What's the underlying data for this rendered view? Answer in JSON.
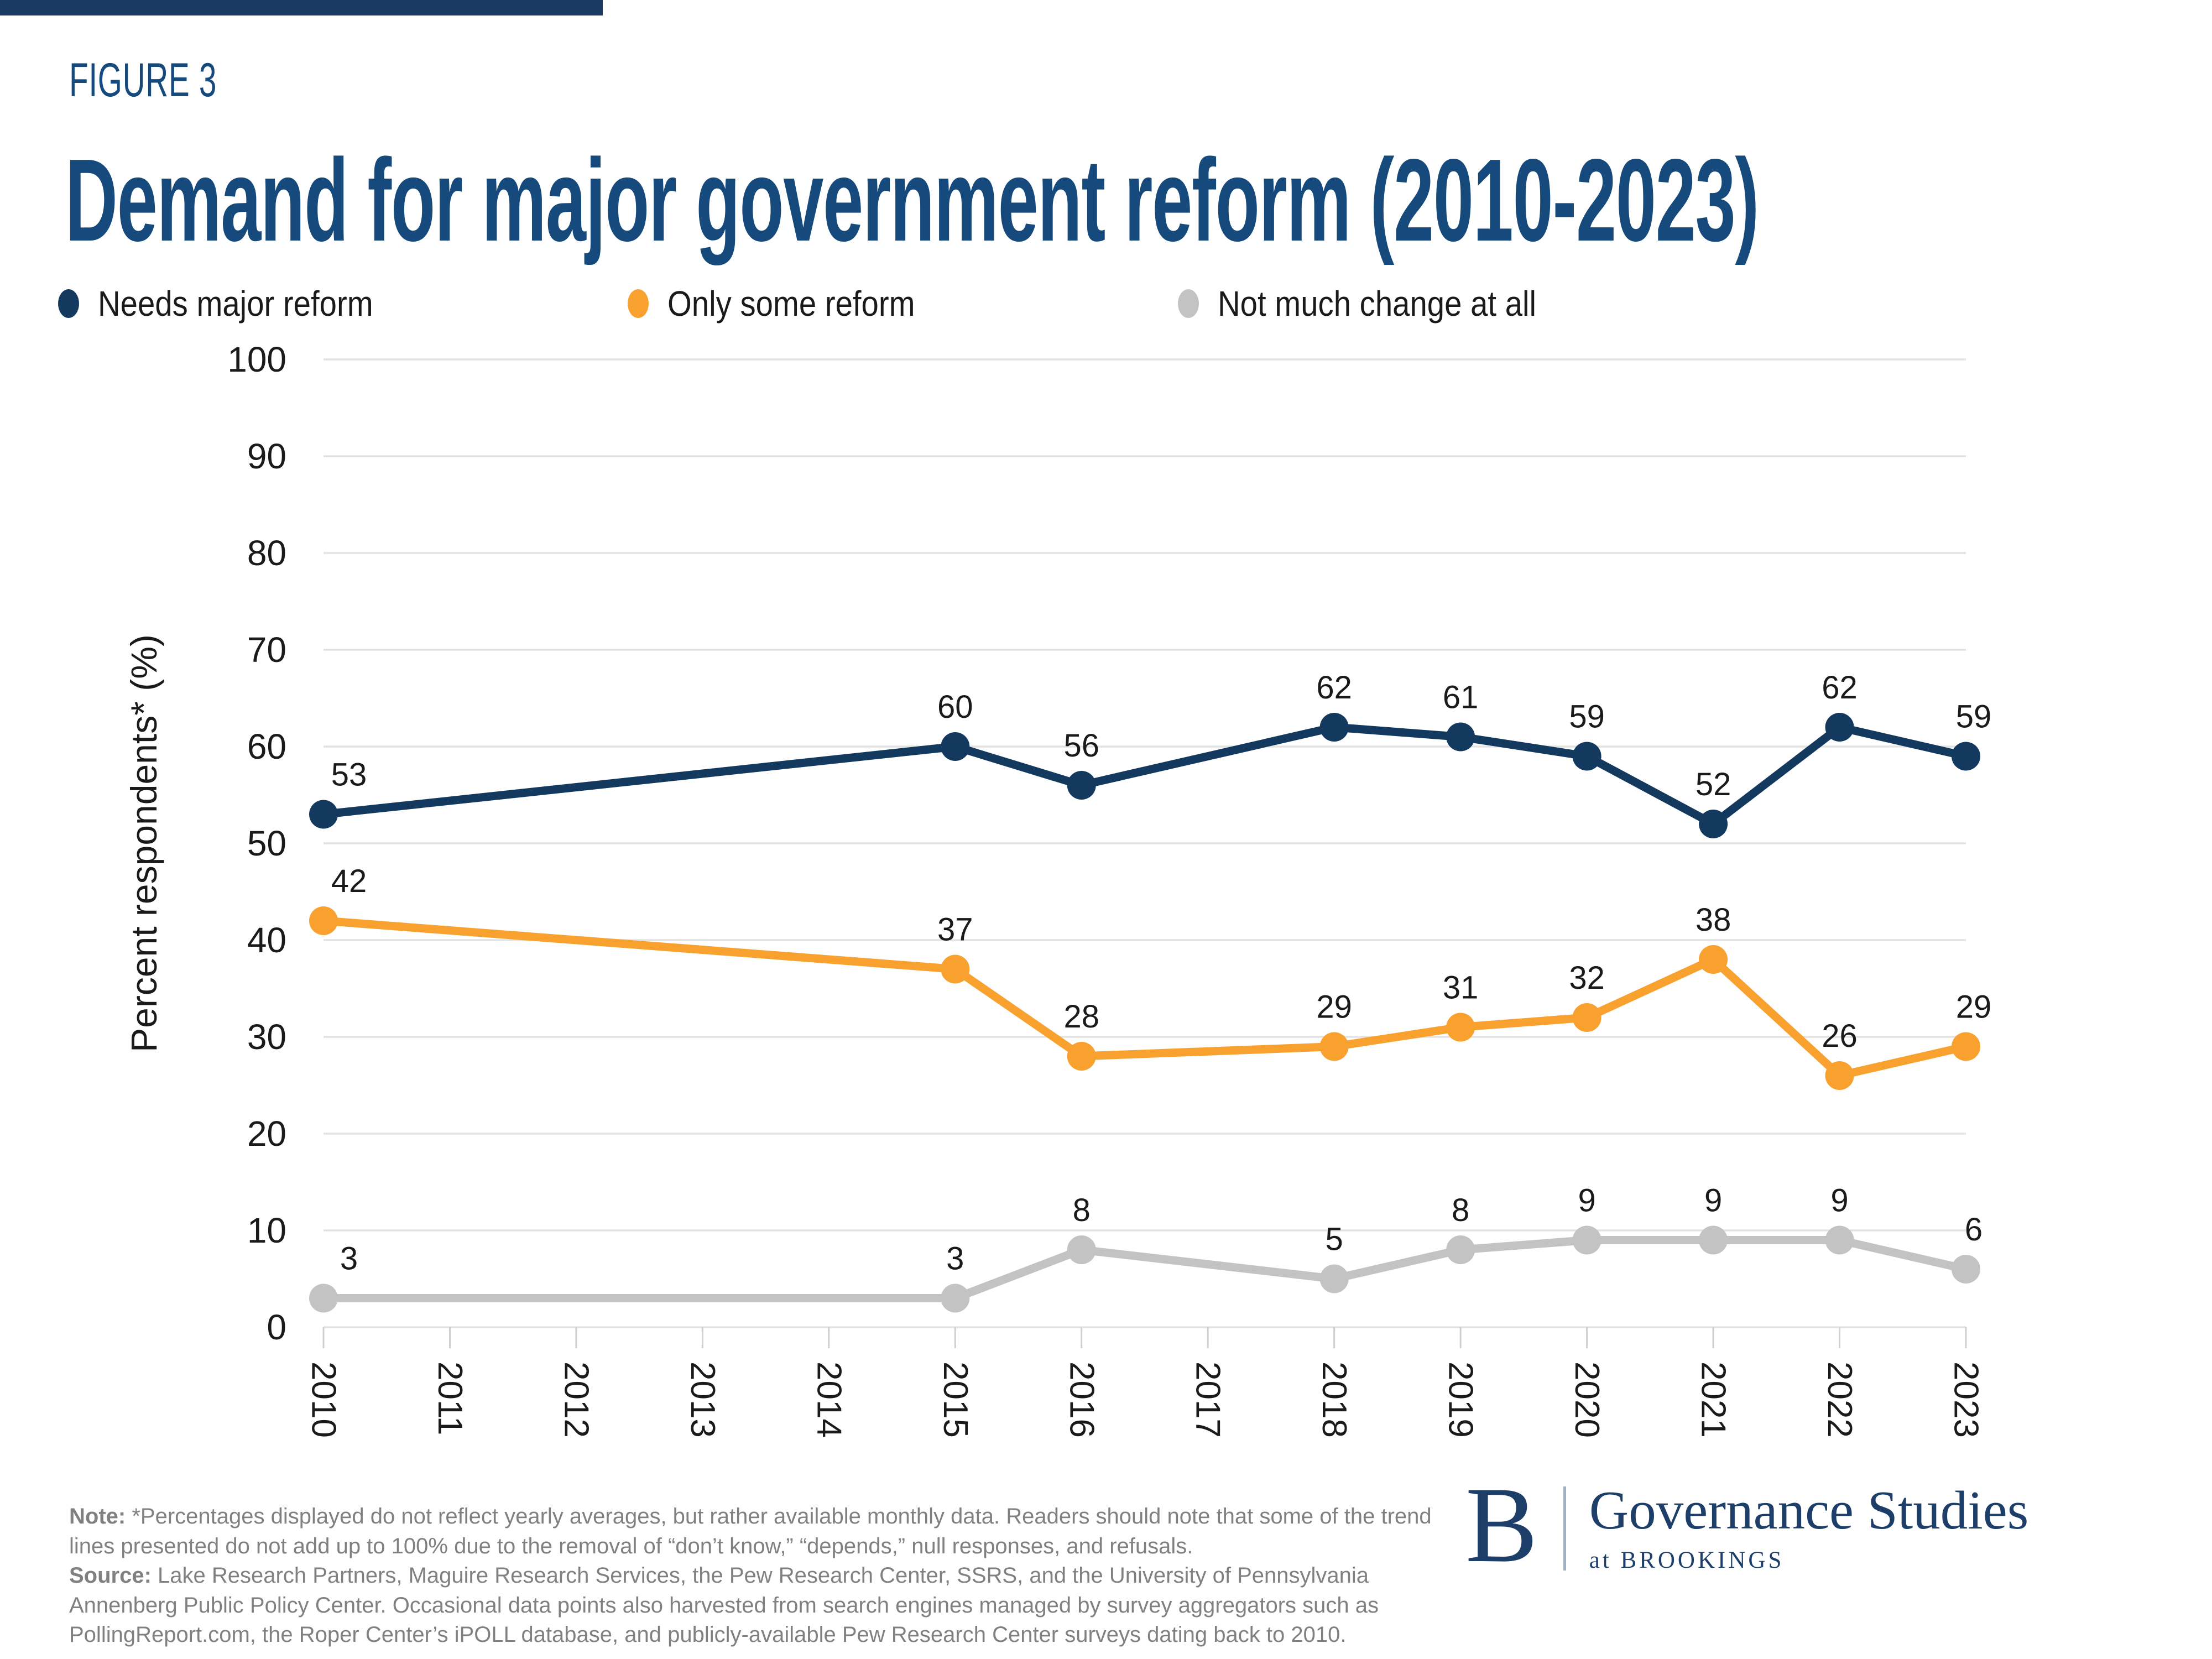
{
  "page": {
    "figure_label": "FIGURE 3"
  },
  "title": "Demand for major government reform (2010-2023)",
  "colors": {
    "top_bar": "#1A3A64",
    "title_navy": "#164A7C",
    "logo_navy": "#1C3E69",
    "note_gray": "#808080",
    "grid": "#E3E3E3",
    "tick": "#CFCFCF",
    "axis_text": "#1A1A1A",
    "navy_series": "#14395F",
    "orange_series": "#F9A12E",
    "gray_series": "#C3C3C3"
  },
  "chart_data": {
    "type": "line",
    "title": "Demand for major government reform (2010-2023)",
    "xlabel": "",
    "ylabel": "Percent respondents* (%)",
    "ylim": [
      0,
      100
    ],
    "yticks": [
      0,
      10,
      20,
      30,
      40,
      50,
      60,
      70,
      80,
      90,
      100
    ],
    "grid": true,
    "legend_position": "top",
    "x_tick_labels": [
      "2010",
      "2011",
      "2012",
      "2013",
      "2014",
      "2015",
      "2016",
      "2017",
      "2018",
      "2019",
      "2020",
      "2021",
      "2022",
      "2023"
    ],
    "series": [
      {
        "name": "Needs major reform",
        "color": "#14395F",
        "points": [
          {
            "x": 2010,
            "y": 53
          },
          {
            "x": 2015,
            "y": 60
          },
          {
            "x": 2016,
            "y": 56
          },
          {
            "x": 2018,
            "y": 62
          },
          {
            "x": 2019,
            "y": 61
          },
          {
            "x": 2020,
            "y": 59
          },
          {
            "x": 2021,
            "y": 52
          },
          {
            "x": 2022,
            "y": 62
          },
          {
            "x": 2023,
            "y": 59
          }
        ]
      },
      {
        "name": "Only some reform",
        "color": "#F9A12E",
        "points": [
          {
            "x": 2010,
            "y": 42
          },
          {
            "x": 2015,
            "y": 37
          },
          {
            "x": 2016,
            "y": 28
          },
          {
            "x": 2018,
            "y": 29
          },
          {
            "x": 2019,
            "y": 31
          },
          {
            "x": 2020,
            "y": 32
          },
          {
            "x": 2021,
            "y": 38
          },
          {
            "x": 2022,
            "y": 26
          },
          {
            "x": 2023,
            "y": 29
          }
        ]
      },
      {
        "name": "Not much change at all",
        "color": "#C3C3C3",
        "points": [
          {
            "x": 2010,
            "y": 3
          },
          {
            "x": 2015,
            "y": 3
          },
          {
            "x": 2016,
            "y": 8
          },
          {
            "x": 2018,
            "y": 5
          },
          {
            "x": 2019,
            "y": 8
          },
          {
            "x": 2020,
            "y": 9
          },
          {
            "x": 2021,
            "y": 9
          },
          {
            "x": 2022,
            "y": 9
          },
          {
            "x": 2023,
            "y": 6
          }
        ]
      }
    ]
  },
  "note": {
    "note_label": "Note:",
    "note_text": " *Percentages displayed do not reflect yearly averages, but rather available monthly data. Readers should note that some of the trend lines presented do not add up to 100% due to the removal of “don’t know,” “depends,” null responses, and refusals.",
    "source_label": "Source:",
    "source_text": " Lake Research Partners, Maguire Research Services, the Pew Research Center, SSRS, and the University of Pennsylvania Annenberg Public Policy Center. Occasional data points also harvested from search engines managed by survey aggregators such as PollingReport.com, the Roper Center’s iPOLL database, and publicly-available Pew Research Center surveys dating back to 2010."
  },
  "logo": {
    "monogram": "B",
    "org": "Governance Studies",
    "tagline": "at BROOKINGS"
  }
}
